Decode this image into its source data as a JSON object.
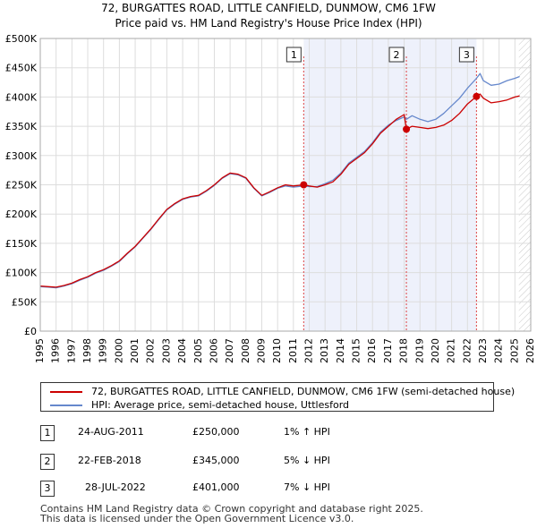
{
  "chart_data": {
    "type": "line",
    "title": "72, BURGATTES ROAD, LITTLE CANFIELD, DUNMOW, CM6 1FW",
    "subtitle": "Price paid vs. HM Land Registry's House Price Index (HPI)",
    "xlabel": "",
    "ylabel": "",
    "xlim": [
      1995,
      2026
    ],
    "ylim": [
      0,
      500000
    ],
    "x_ticks": [
      "1995",
      "1996",
      "1997",
      "1998",
      "1999",
      "2000",
      "2001",
      "2002",
      "2003",
      "2004",
      "2005",
      "2006",
      "2007",
      "2008",
      "2009",
      "2010",
      "2011",
      "2012",
      "2013",
      "2014",
      "2015",
      "2016",
      "2017",
      "2018",
      "2019",
      "2020",
      "2021",
      "2022",
      "2023",
      "2024",
      "2025",
      "2026"
    ],
    "y_ticks": [
      {
        "value": 0,
        "label": "£0"
      },
      {
        "value": 50000,
        "label": "£50K"
      },
      {
        "value": 100000,
        "label": "£100K"
      },
      {
        "value": 150000,
        "label": "£150K"
      },
      {
        "value": 200000,
        "label": "£200K"
      },
      {
        "value": 250000,
        "label": "£250K"
      },
      {
        "value": 300000,
        "label": "£300K"
      },
      {
        "value": 350000,
        "label": "£350K"
      },
      {
        "value": 400000,
        "label": "£400K"
      },
      {
        "value": 450000,
        "label": "£450K"
      },
      {
        "value": 500000,
        "label": "£500K"
      }
    ],
    "grid": true,
    "future_hatch_from": 2025.25,
    "series": [
      {
        "name": "72, BURGATTES ROAD, LITTLE CANFIELD, DUNMOW, CM6 1FW (semi-detached house)",
        "color": "#cc0000",
        "x": [
          1995.0,
          1995.5,
          1996.0,
          1996.5,
          1997.0,
          1997.5,
          1998.0,
          1998.5,
          1999.0,
          1999.5,
          2000.0,
          2000.5,
          2001.0,
          2001.5,
          2002.0,
          2002.5,
          2003.0,
          2003.5,
          2004.0,
          2004.5,
          2005.0,
          2005.5,
          2006.0,
          2006.5,
          2007.0,
          2007.5,
          2008.0,
          2008.5,
          2009.0,
          2009.5,
          2010.0,
          2010.5,
          2011.0,
          2011.65,
          2012.0,
          2012.5,
          2013.0,
          2013.5,
          2014.0,
          2014.5,
          2015.0,
          2015.5,
          2016.0,
          2016.5,
          2017.0,
          2017.5,
          2018.0,
          2018.14,
          2018.5,
          2019.0,
          2019.5,
          2020.0,
          2020.5,
          2021.0,
          2021.5,
          2022.0,
          2022.57,
          2022.8,
          2023.0,
          2023.5,
          2024.0,
          2024.5,
          2025.0,
          2025.3
        ],
        "values": [
          77000,
          76000,
          75000,
          78000,
          82000,
          88000,
          93000,
          100000,
          105000,
          112000,
          120000,
          133000,
          145000,
          160000,
          175000,
          192000,
          208000,
          218000,
          226000,
          230000,
          232000,
          240000,
          250000,
          262000,
          270000,
          268000,
          262000,
          245000,
          232000,
          238000,
          245000,
          250000,
          248000,
          250000,
          248000,
          246000,
          250000,
          255000,
          268000,
          285000,
          295000,
          305000,
          320000,
          338000,
          350000,
          362000,
          370000,
          345000,
          350000,
          348000,
          346000,
          348000,
          352000,
          360000,
          372000,
          388000,
          401000,
          405000,
          398000,
          390000,
          392000,
          395000,
          400000,
          402000
        ]
      },
      {
        "name": "HPI: Average price, semi-detached house, Uttlesford",
        "color": "#6688cc",
        "x": [
          1995.0,
          1995.5,
          1996.0,
          1996.5,
          1997.0,
          1997.5,
          1998.0,
          1998.5,
          1999.0,
          1999.5,
          2000.0,
          2000.5,
          2001.0,
          2001.5,
          2002.0,
          2002.5,
          2003.0,
          2003.5,
          2004.0,
          2004.5,
          2005.0,
          2005.5,
          2006.0,
          2006.5,
          2007.0,
          2007.5,
          2008.0,
          2008.5,
          2009.0,
          2009.5,
          2010.0,
          2010.5,
          2011.0,
          2011.65,
          2012.0,
          2012.5,
          2013.0,
          2013.5,
          2014.0,
          2014.5,
          2015.0,
          2015.5,
          2016.0,
          2016.5,
          2017.0,
          2017.5,
          2018.0,
          2018.14,
          2018.5,
          2019.0,
          2019.5,
          2020.0,
          2020.5,
          2021.0,
          2021.5,
          2022.0,
          2022.57,
          2022.8,
          2023.0,
          2023.5,
          2024.0,
          2024.5,
          2025.0,
          2025.3
        ],
        "values": [
          76000,
          75000,
          74000,
          77000,
          81000,
          87000,
          92000,
          99000,
          104000,
          111000,
          119000,
          132000,
          144000,
          159000,
          174000,
          191000,
          207000,
          217000,
          225000,
          229000,
          231000,
          239000,
          249000,
          261000,
          269000,
          267000,
          261000,
          244000,
          231000,
          237000,
          244000,
          248000,
          246000,
          248000,
          247000,
          247000,
          252000,
          258000,
          270000,
          287000,
          297000,
          307000,
          322000,
          340000,
          352000,
          360000,
          366000,
          362000,
          368000,
          362000,
          358000,
          362000,
          372000,
          385000,
          398000,
          415000,
          432000,
          440000,
          428000,
          420000,
          422000,
          428000,
          432000,
          435000
        ]
      }
    ],
    "transactions": [
      {
        "marker": "1",
        "date": "24-AUG-2011",
        "x": 2011.65,
        "price_value": 250000,
        "price": "£250,000",
        "hpi": "1% ↑ HPI"
      },
      {
        "marker": "2",
        "date": "22-FEB-2018",
        "x": 2018.14,
        "price_value": 345000,
        "price": "£345,000",
        "hpi": "5% ↓ HPI"
      },
      {
        "marker": "3",
        "date": "28-JUL-2022",
        "x": 2022.57,
        "price_value": 401000,
        "price": "£401,000",
        "hpi": "7% ↓ HPI"
      }
    ]
  },
  "footer": {
    "line1": "Contains HM Land Registry data © Crown copyright and database right 2025.",
    "line2": "This data is licensed under the Open Government Licence v3.0."
  }
}
